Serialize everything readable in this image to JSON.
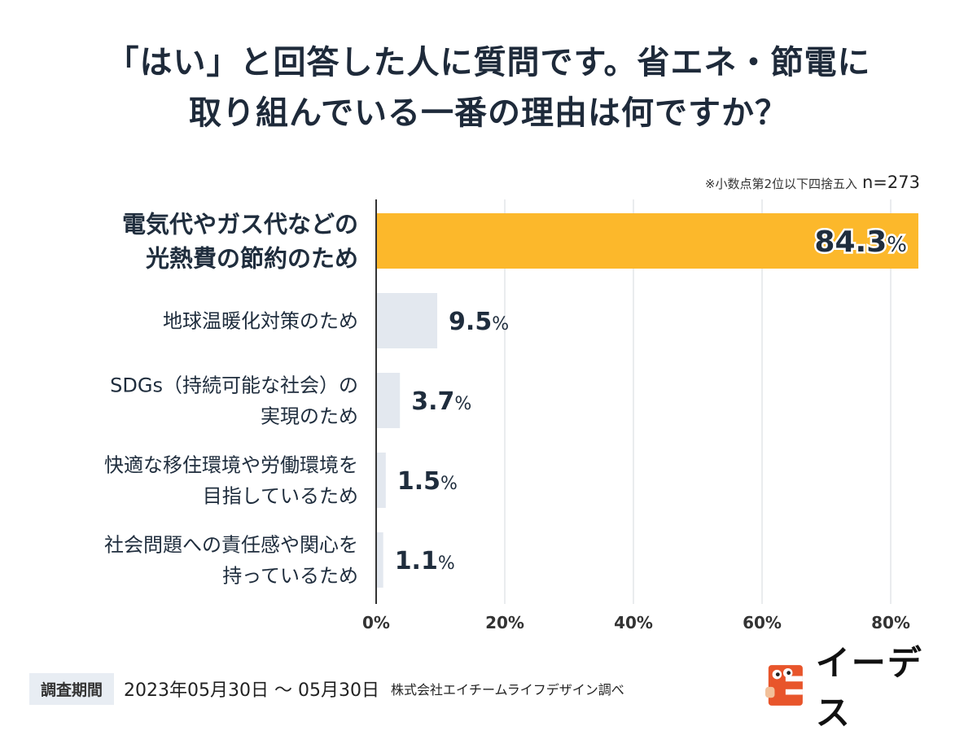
{
  "title_line1": "「はい」と回答した人に質問です。省エネ・節電に",
  "title_line2": "取り組んでいる一番の理由は何ですか？",
  "note": "※小数点第2位以下四捨五入",
  "sample": "n=273",
  "footer": {
    "period_label": "調査期間",
    "dates": "2023年05月30日 〜 05月30日",
    "source": "株式会社エイチームライフデザイン調べ"
  },
  "logo": {
    "text": "イーデス",
    "icon": "ideth-mascot-icon",
    "color": "#e8552b"
  },
  "colors": {
    "highlight": "#fcb82b",
    "bar": "#e3e8ef",
    "axis": "#333333",
    "grid": "#d4d8de"
  },
  "chart_data": {
    "type": "bar",
    "orientation": "horizontal",
    "categories": [
      [
        "電気代やガス代などの",
        "光熱費の節約のため"
      ],
      [
        "地球温暖化対策のため"
      ],
      [
        "SDGs（持続可能な社会）の",
        "実現のため"
      ],
      [
        "快適な移住環境や労働環境を",
        "目指しているため"
      ],
      [
        "社会問題への責任感や関心を",
        "持っているため"
      ]
    ],
    "values": [
      84.3,
      9.5,
      3.7,
      1.5,
      1.1
    ],
    "value_labels": [
      "84.3",
      "9.5",
      "3.7",
      "1.5",
      "1.1"
    ],
    "unit": "%",
    "xlim": [
      0,
      85
    ],
    "xticks": [
      0,
      20,
      40,
      60,
      80
    ],
    "xtick_labels": [
      "0%",
      "20%",
      "40%",
      "60%",
      "80%"
    ],
    "grid": true,
    "highlight_index": 0
  }
}
